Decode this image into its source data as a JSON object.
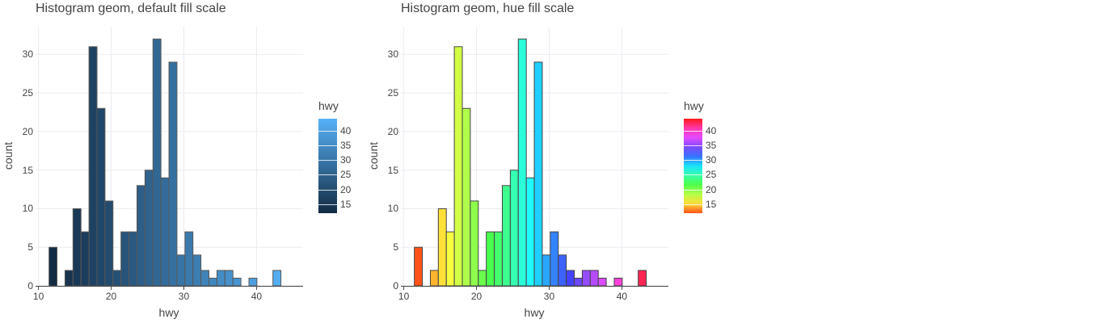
{
  "chart_data": [
    {
      "type": "bar",
      "title": "Histogram geom, default fill scale",
      "xlabel": "hwy",
      "ylabel": "count",
      "xlim": [
        9.6,
        46.4
      ],
      "ylim": [
        0,
        33.6
      ],
      "xticks": [
        10,
        20,
        30,
        40
      ],
      "yticks": [
        0,
        5,
        10,
        15,
        20,
        25,
        30
      ],
      "grid": true,
      "bin_width": 1.1,
      "bin_start": 11.45,
      "values": [
        5,
        0,
        2,
        10,
        7,
        31,
        23,
        11,
        2,
        7,
        7,
        13,
        15,
        32,
        14,
        29,
        4,
        7,
        4,
        2,
        1,
        2,
        2,
        1,
        0,
        1,
        0,
        0,
        2
      ],
      "fill_scale": "default",
      "legend": {
        "title": "hwy",
        "position": "right",
        "ticks": [
          "15",
          "20",
          "25",
          "30",
          "35",
          "40"
        ],
        "range": [
          12,
          44
        ]
      },
      "colors": {
        "low": "#132b43",
        "high": "#56b1f7",
        "bar_outline": "#595959"
      }
    },
    {
      "type": "bar",
      "title": "Histogram geom, hue fill scale",
      "xlabel": "hwy",
      "ylabel": "count",
      "xlim": [
        9.6,
        46.4
      ],
      "ylim": [
        0,
        33.6
      ],
      "xticks": [
        10,
        20,
        30,
        40
      ],
      "yticks": [
        0,
        5,
        10,
        15,
        20,
        25,
        30
      ],
      "grid": true,
      "bin_width": 1.1,
      "bin_start": 11.45,
      "values": [
        5,
        0,
        2,
        10,
        7,
        31,
        23,
        11,
        2,
        7,
        7,
        13,
        15,
        32,
        14,
        29,
        4,
        7,
        4,
        2,
        1,
        2,
        2,
        1,
        0,
        1,
        0,
        0,
        2
      ],
      "fill_scale": "hue",
      "legend": {
        "title": "hwy",
        "position": "right",
        "ticks": [
          "15",
          "20",
          "25",
          "30",
          "35",
          "40"
        ],
        "range": [
          12,
          44
        ]
      },
      "colors": {
        "bar_outline": "#444444"
      }
    }
  ]
}
